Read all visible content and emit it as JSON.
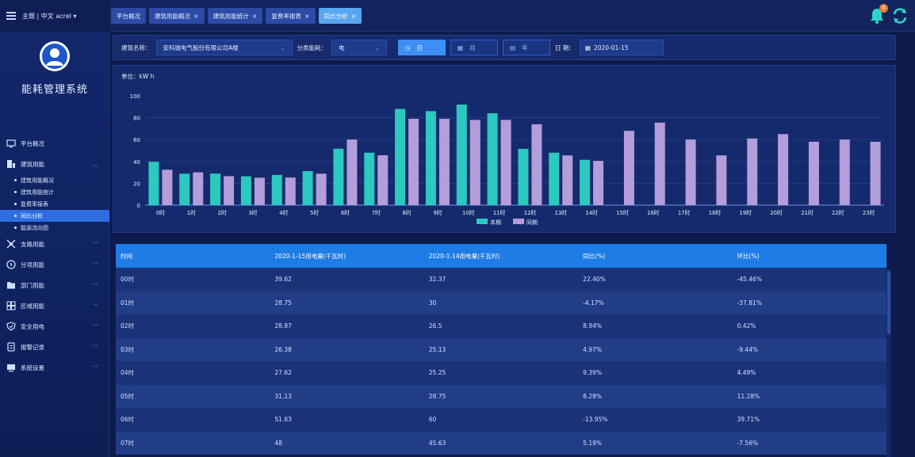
{
  "header": {
    "theme_text": "主题 | 中文  acrel ▾",
    "tabs": [
      {
        "label": "平台概况",
        "closable": false,
        "active": false
      },
      {
        "label": "建筑用能概况",
        "closable": true,
        "active": false
      },
      {
        "label": "建筑用能统计",
        "closable": true,
        "active": false
      },
      {
        "label": "复费率报表",
        "closable": true,
        "active": false
      },
      {
        "label": "同比分析",
        "closable": true,
        "active": true
      }
    ],
    "close_glyph": "×",
    "notification_count": "0"
  },
  "sidebar": {
    "system_title": "能耗管理系统",
    "items": [
      {
        "label": "平台概况",
        "icon": "monitor-icon",
        "expandable": false
      },
      {
        "label": "建筑用能",
        "icon": "building-icon",
        "expandable": true,
        "children": [
          {
            "label": "建筑用能概况",
            "active": false
          },
          {
            "label": "建筑用能统计",
            "active": false
          },
          {
            "label": "复费率报表",
            "active": false
          },
          {
            "label": "同比分析",
            "active": true
          },
          {
            "label": "能源流向图",
            "active": false
          }
        ]
      },
      {
        "label": "支路用能",
        "icon": "branch-icon",
        "expandable": true
      },
      {
        "label": "分项用能",
        "icon": "item-icon",
        "expandable": true
      },
      {
        "label": "部门用能",
        "icon": "folder-icon",
        "expandable": true
      },
      {
        "label": "区域用能",
        "icon": "region-icon",
        "expandable": true
      },
      {
        "label": "安全用电",
        "icon": "shield-icon",
        "expandable": true
      },
      {
        "label": "报警记录",
        "icon": "alarm-icon",
        "expandable": true
      },
      {
        "label": "系统设置",
        "icon": "settings-icon",
        "expandable": true
      }
    ]
  },
  "filter": {
    "building_label": "建筑名称：",
    "building_value": "安科瑞电气股份有限公司A楼",
    "category_label": "分类能耗：",
    "category_value": "电",
    "day_label": "日",
    "month_label": "月",
    "year_label": "年",
    "date_label": "日 期：",
    "date_value": "2020-01-15",
    "active_period": "日"
  },
  "chart_data": {
    "type": "bar",
    "unit_label": "单位：kW h",
    "categories": [
      "0时",
      "1时",
      "2时",
      "3时",
      "4时",
      "5时",
      "6时",
      "7时",
      "8时",
      "9时",
      "10时",
      "11时",
      "12时",
      "13时",
      "14时",
      "15时",
      "16时",
      "17时",
      "18时",
      "19时",
      "20时",
      "21时",
      "22时",
      "23时"
    ],
    "series": [
      {
        "name": "本期",
        "color": "#2cc9c0",
        "values": [
          39.62,
          28.75,
          28.87,
          26.38,
          27.62,
          31.13,
          51.63,
          48,
          88,
          86,
          92,
          84,
          51.5,
          48,
          41.5,
          null,
          null,
          null,
          null,
          null,
          null,
          null,
          null,
          null
        ]
      },
      {
        "name": "同期",
        "color": "#b39ddb",
        "values": [
          32.37,
          30,
          26.5,
          25.13,
          25.25,
          28.75,
          60,
          45.63,
          79,
          79,
          78,
          78,
          74,
          45.5,
          40.5,
          68,
          75.5,
          60,
          45.5,
          61,
          65,
          58,
          60,
          58
        ]
      }
    ],
    "ylim": [
      0,
      100
    ],
    "yticks": [
      0,
      20,
      40,
      60,
      80,
      100
    ],
    "grid": true,
    "legend_position": "bottom-center"
  },
  "table": {
    "headers": [
      "时间",
      "2020-1-15用电量(千瓦时)",
      "2020-1-14用电量(千瓦时)",
      "同比(%)",
      "环比(%)"
    ],
    "rows": [
      [
        "00时",
        "39.62",
        "32.37",
        "22.40%",
        "-45.46%"
      ],
      [
        "01时",
        "28.75",
        "30",
        "-4.17%",
        "-37.81%"
      ],
      [
        "02时",
        "28.87",
        "26.5",
        "8.94%",
        "0.42%"
      ],
      [
        "03时",
        "26.38",
        "25.13",
        "4.97%",
        "-9.44%"
      ],
      [
        "04时",
        "27.62",
        "25.25",
        "9.39%",
        "4.49%"
      ],
      [
        "05时",
        "31.13",
        "28.75",
        "8.28%",
        "11.28%"
      ],
      [
        "06时",
        "51.63",
        "60",
        "-13.95%",
        "39.71%"
      ],
      [
        "07时",
        "48",
        "45.63",
        "5.19%",
        "-7.56%"
      ]
    ]
  },
  "colors": {
    "accent": "#1e7ce6",
    "current_series": "#2cc9c0",
    "previous_series": "#b39ddb",
    "background": "#0d1b4c"
  }
}
